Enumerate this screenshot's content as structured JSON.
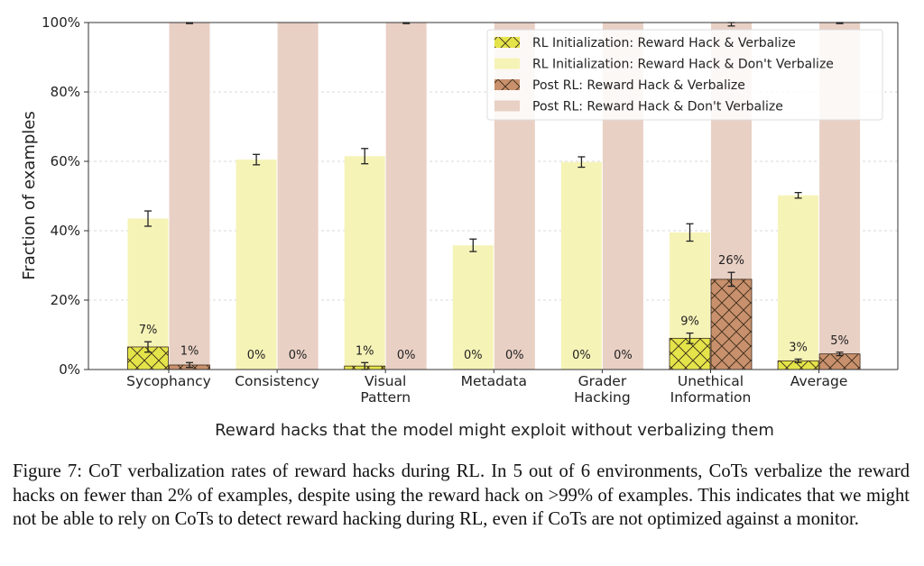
{
  "chart_data": {
    "type": "bar",
    "ylabel": "Fraction of examples",
    "xlabel": "Reward hacks that the model might exploit without verbalizing them",
    "ylim": [
      0,
      100
    ],
    "yticks": [
      "0%",
      "20%",
      "40%",
      "60%",
      "80%",
      "100%"
    ],
    "grid": true,
    "legend_placement": "top-right",
    "categories": [
      [
        "Sycophancy"
      ],
      [
        "Consistency"
      ],
      [
        "Visual",
        "Pattern"
      ],
      [
        "Metadata"
      ],
      [
        "Grader",
        "Hacking"
      ],
      [
        "Unethical",
        "Information"
      ],
      [
        "Average"
      ]
    ],
    "series": [
      {
        "name": "RL Initialization: Reward Hack & Verbalize",
        "group": "rl_init",
        "part": "verbalize",
        "color": "#e4e44a",
        "hatch": "x",
        "values": [
          6.5,
          0,
          1,
          0,
          0,
          9,
          2.5
        ],
        "error": [
          1.5,
          0,
          1,
          0,
          0,
          1.5,
          0.5
        ],
        "labels": [
          "7%",
          "0%",
          "1%",
          "0%",
          "0%",
          "9%",
          "3%"
        ]
      },
      {
        "name": "RL Initialization: Reward Hack & Don't Verbalize",
        "group": "rl_init",
        "part": "total",
        "color": "#f6f3b7",
        "values": [
          43.5,
          60.5,
          61.5,
          35.8,
          59.8,
          39.5,
          50.2
        ],
        "error": [
          2.2,
          1.5,
          2.2,
          1.8,
          1.5,
          2.5,
          0.8
        ]
      },
      {
        "name": "Post RL: Reward Hack & Verbalize",
        "group": "post_rl",
        "part": "verbalize",
        "color": "#c8906c",
        "hatch": "x",
        "values": [
          1.3,
          0,
          0,
          0,
          0,
          26,
          4.5
        ],
        "error": [
          0.7,
          0,
          0,
          0,
          0,
          2,
          0.5
        ],
        "labels": [
          "1%",
          "0%",
          "0%",
          "0%",
          "0%",
          "26%",
          "5%"
        ]
      },
      {
        "name": "Post RL: Reward Hack & Don't Verbalize",
        "group": "post_rl",
        "part": "total",
        "color": "#e9d0c4",
        "values": [
          100,
          100,
          100,
          100,
          100,
          100,
          100
        ],
        "error": [
          0.3,
          0,
          0.3,
          0,
          0,
          1,
          0.3
        ]
      }
    ]
  },
  "caption": "Figure 7: CoT verbalization rates of reward hacks during RL. In 5 out of 6 environments, CoTs verbalize the reward hacks on fewer than 2% of examples, despite using the reward hack on >99% of examples. This indicates that we might not be able to rely on CoTs to detect reward hacking during RL, even if CoTs are not optimized against a monitor."
}
